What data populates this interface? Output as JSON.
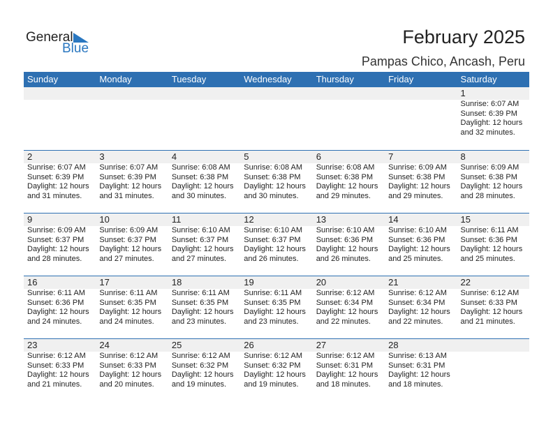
{
  "logo": {
    "text_general": "General",
    "text_blue": "Blue"
  },
  "title": "February 2025",
  "location": "Pampas Chico, Ancash, Peru",
  "colors": {
    "header": "#2e70b2",
    "band": "#f0f0f0"
  },
  "weekdays": [
    "Sunday",
    "Monday",
    "Tuesday",
    "Wednesday",
    "Thursday",
    "Friday",
    "Saturday"
  ],
  "days": [
    {
      "day": "1",
      "sunrise": "Sunrise: 6:07 AM",
      "sunset": "Sunset: 6:39 PM",
      "daylight": "Daylight: 12 hours",
      "minutes": "and 32 minutes."
    },
    {
      "day": "2",
      "sunrise": "Sunrise: 6:07 AM",
      "sunset": "Sunset: 6:39 PM",
      "daylight": "Daylight: 12 hours",
      "minutes": "and 31 minutes."
    },
    {
      "day": "3",
      "sunrise": "Sunrise: 6:07 AM",
      "sunset": "Sunset: 6:39 PM",
      "daylight": "Daylight: 12 hours",
      "minutes": "and 31 minutes."
    },
    {
      "day": "4",
      "sunrise": "Sunrise: 6:08 AM",
      "sunset": "Sunset: 6:38 PM",
      "daylight": "Daylight: 12 hours",
      "minutes": "and 30 minutes."
    },
    {
      "day": "5",
      "sunrise": "Sunrise: 6:08 AM",
      "sunset": "Sunset: 6:38 PM",
      "daylight": "Daylight: 12 hours",
      "minutes": "and 30 minutes."
    },
    {
      "day": "6",
      "sunrise": "Sunrise: 6:08 AM",
      "sunset": "Sunset: 6:38 PM",
      "daylight": "Daylight: 12 hours",
      "minutes": "and 29 minutes."
    },
    {
      "day": "7",
      "sunrise": "Sunrise: 6:09 AM",
      "sunset": "Sunset: 6:38 PM",
      "daylight": "Daylight: 12 hours",
      "minutes": "and 29 minutes."
    },
    {
      "day": "8",
      "sunrise": "Sunrise: 6:09 AM",
      "sunset": "Sunset: 6:38 PM",
      "daylight": "Daylight: 12 hours",
      "minutes": "and 28 minutes."
    },
    {
      "day": "9",
      "sunrise": "Sunrise: 6:09 AM",
      "sunset": "Sunset: 6:37 PM",
      "daylight": "Daylight: 12 hours",
      "minutes": "and 28 minutes."
    },
    {
      "day": "10",
      "sunrise": "Sunrise: 6:09 AM",
      "sunset": "Sunset: 6:37 PM",
      "daylight": "Daylight: 12 hours",
      "minutes": "and 27 minutes."
    },
    {
      "day": "11",
      "sunrise": "Sunrise: 6:10 AM",
      "sunset": "Sunset: 6:37 PM",
      "daylight": "Daylight: 12 hours",
      "minutes": "and 27 minutes."
    },
    {
      "day": "12",
      "sunrise": "Sunrise: 6:10 AM",
      "sunset": "Sunset: 6:37 PM",
      "daylight": "Daylight: 12 hours",
      "minutes": "and 26 minutes."
    },
    {
      "day": "13",
      "sunrise": "Sunrise: 6:10 AM",
      "sunset": "Sunset: 6:36 PM",
      "daylight": "Daylight: 12 hours",
      "minutes": "and 26 minutes."
    },
    {
      "day": "14",
      "sunrise": "Sunrise: 6:10 AM",
      "sunset": "Sunset: 6:36 PM",
      "daylight": "Daylight: 12 hours",
      "minutes": "and 25 minutes."
    },
    {
      "day": "15",
      "sunrise": "Sunrise: 6:11 AM",
      "sunset": "Sunset: 6:36 PM",
      "daylight": "Daylight: 12 hours",
      "minutes": "and 25 minutes."
    },
    {
      "day": "16",
      "sunrise": "Sunrise: 6:11 AM",
      "sunset": "Sunset: 6:36 PM",
      "daylight": "Daylight: 12 hours",
      "minutes": "and 24 minutes."
    },
    {
      "day": "17",
      "sunrise": "Sunrise: 6:11 AM",
      "sunset": "Sunset: 6:35 PM",
      "daylight": "Daylight: 12 hours",
      "minutes": "and 24 minutes."
    },
    {
      "day": "18",
      "sunrise": "Sunrise: 6:11 AM",
      "sunset": "Sunset: 6:35 PM",
      "daylight": "Daylight: 12 hours",
      "minutes": "and 23 minutes."
    },
    {
      "day": "19",
      "sunrise": "Sunrise: 6:11 AM",
      "sunset": "Sunset: 6:35 PM",
      "daylight": "Daylight: 12 hours",
      "minutes": "and 23 minutes."
    },
    {
      "day": "20",
      "sunrise": "Sunrise: 6:12 AM",
      "sunset": "Sunset: 6:34 PM",
      "daylight": "Daylight: 12 hours",
      "minutes": "and 22 minutes."
    },
    {
      "day": "21",
      "sunrise": "Sunrise: 6:12 AM",
      "sunset": "Sunset: 6:34 PM",
      "daylight": "Daylight: 12 hours",
      "minutes": "and 22 minutes."
    },
    {
      "day": "22",
      "sunrise": "Sunrise: 6:12 AM",
      "sunset": "Sunset: 6:33 PM",
      "daylight": "Daylight: 12 hours",
      "minutes": "and 21 minutes."
    },
    {
      "day": "23",
      "sunrise": "Sunrise: 6:12 AM",
      "sunset": "Sunset: 6:33 PM",
      "daylight": "Daylight: 12 hours",
      "minutes": "and 21 minutes."
    },
    {
      "day": "24",
      "sunrise": "Sunrise: 6:12 AM",
      "sunset": "Sunset: 6:33 PM",
      "daylight": "Daylight: 12 hours",
      "minutes": "and 20 minutes."
    },
    {
      "day": "25",
      "sunrise": "Sunrise: 6:12 AM",
      "sunset": "Sunset: 6:32 PM",
      "daylight": "Daylight: 12 hours",
      "minutes": "and 19 minutes."
    },
    {
      "day": "26",
      "sunrise": "Sunrise: 6:12 AM",
      "sunset": "Sunset: 6:32 PM",
      "daylight": "Daylight: 12 hours",
      "minutes": "and 19 minutes."
    },
    {
      "day": "27",
      "sunrise": "Sunrise: 6:12 AM",
      "sunset": "Sunset: 6:31 PM",
      "daylight": "Daylight: 12 hours",
      "minutes": "and 18 minutes."
    },
    {
      "day": "28",
      "sunrise": "Sunrise: 6:13 AM",
      "sunset": "Sunset: 6:31 PM",
      "daylight": "Daylight: 12 hours",
      "minutes": "and 18 minutes."
    }
  ]
}
